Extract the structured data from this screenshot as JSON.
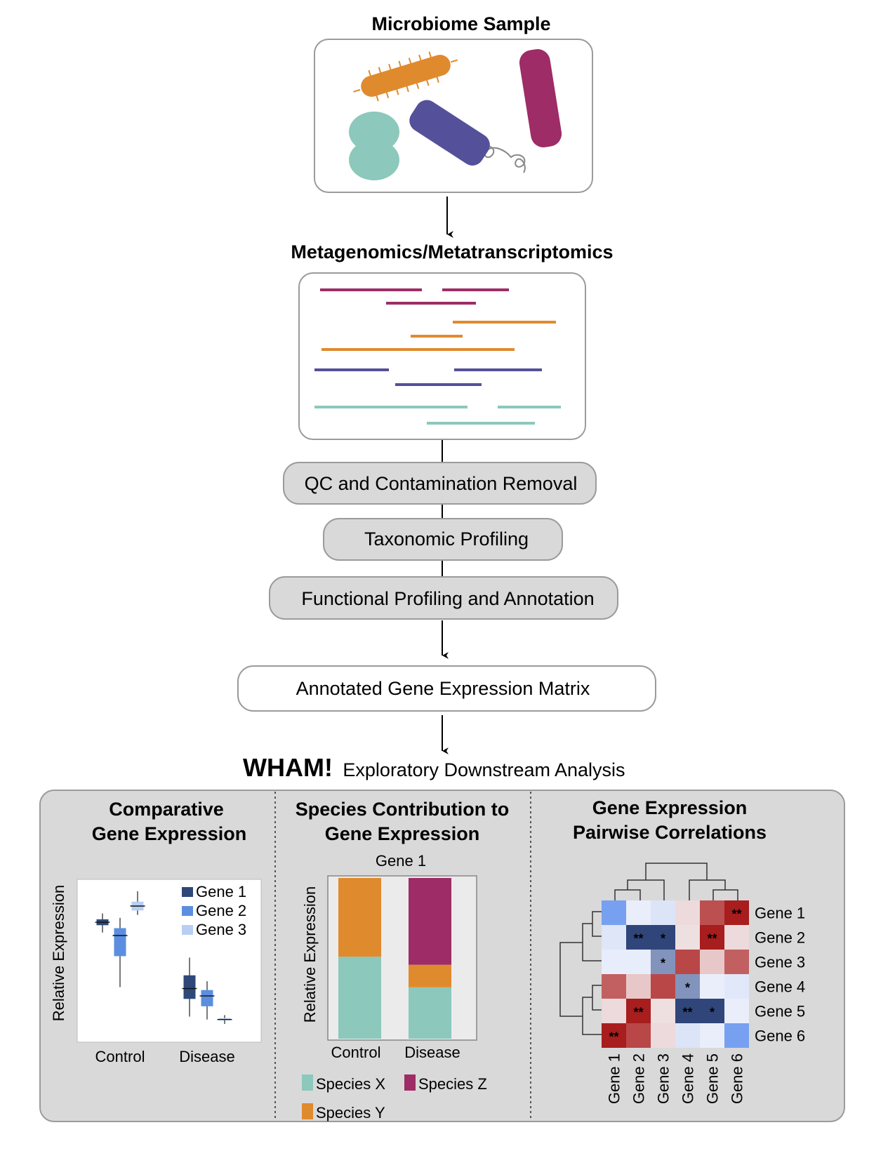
{
  "title": "Microbiome Sample",
  "sequencing_title": "Metagenomics/Metatranscriptomics",
  "steps": [
    "QC and Contamination Removal",
    "Taxonomic Profiling",
    "Functional Profiling and Annotation"
  ],
  "matrix_label": "Annotated Gene Expression Matrix",
  "wham": {
    "name": "WHAM!",
    "subtitle": "Exploratory Downstream Analysis"
  },
  "panels": {
    "comparative": {
      "title_line1": "Comparative",
      "title_line2": "Gene Expression",
      "ylabel": "Relative Expression",
      "groups": [
        "Control",
        "Disease"
      ],
      "legend": [
        "Gene 1",
        "Gene 2",
        "Gene 3"
      ],
      "colors": [
        "#2e4878",
        "#5b8ee0",
        "#b8cef2"
      ]
    },
    "species": {
      "title_line1": "Species Contribution to",
      "title_line2": "Gene Expression",
      "chart_title": "Gene 1",
      "ylabel": "Relative Expression",
      "groups": [
        "Control",
        "Disease"
      ],
      "legend": [
        "Species X",
        "Species Z",
        "Species Y"
      ],
      "colors": {
        "Species X": "#8cc8bb",
        "Species Y": "#e08a2e",
        "Species Z": "#9e2c66"
      },
      "stacks": [
        {
          "group": "Control",
          "Species X": 0.51,
          "Species Y": 0.49,
          "Species Z": 0.0
        },
        {
          "group": "Disease",
          "Species X": 0.32,
          "Species Y": 0.14,
          "Species Z": 0.54
        }
      ]
    },
    "correlation": {
      "title_line1": "Gene Expression",
      "title_line2": "Pairwise Correlations",
      "row_labels": [
        "Gene 1",
        "Gene 2",
        "Gene 3",
        "Gene 4",
        "Gene 5",
        "Gene 6"
      ],
      "col_labels": [
        "Gene 1",
        "Gene 2",
        "Gene 3",
        "Gene 4",
        "Gene 5",
        "Gene 6"
      ]
    }
  },
  "chart_data": [
    {
      "type": "box",
      "title": "",
      "xlabel": "",
      "ylabel": "Relative Expression",
      "categories": [
        "Control",
        "Disease"
      ],
      "series": [
        {
          "name": "Gene 1",
          "boxes": [
            {
              "min": 0.72,
              "q1": 0.77,
              "median": 0.79,
              "q3": 0.81,
              "max": 0.85
            },
            {
              "min": 0.15,
              "q1": 0.27,
              "median": 0.34,
              "q3": 0.43,
              "max": 0.55
            }
          ]
        },
        {
          "name": "Gene 2",
          "boxes": [
            {
              "min": 0.35,
              "q1": 0.56,
              "median": 0.7,
              "q3": 0.75,
              "max": 0.82
            },
            {
              "min": 0.13,
              "q1": 0.22,
              "median": 0.29,
              "q3": 0.33,
              "max": 0.39
            }
          ]
        },
        {
          "name": "Gene 3",
          "boxes": [
            {
              "min": 0.84,
              "q1": 0.87,
              "median": 0.9,
              "q3": 0.93,
              "max": 1.0
            },
            {
              "min": 0.1,
              "q1": 0.125,
              "median": 0.13,
              "q3": 0.14,
              "max": 0.16
            }
          ]
        }
      ]
    },
    {
      "type": "stacked-bar",
      "title": "Gene 1",
      "ylabel": "Relative Expression",
      "categories": [
        "Control",
        "Disease"
      ],
      "series": [
        {
          "name": "Species X",
          "values": [
            0.51,
            0.32
          ]
        },
        {
          "name": "Species Y",
          "values": [
            0.49,
            0.14
          ]
        },
        {
          "name": "Species Z",
          "values": [
            0.0,
            0.54
          ]
        }
      ],
      "ylim": [
        0,
        1
      ]
    },
    {
      "type": "heatmap",
      "rows": [
        "Gene 1",
        "Gene 2",
        "Gene 3",
        "Gene 4",
        "Gene 5",
        "Gene 6"
      ],
      "cols": [
        "Gene 1",
        "Gene 2",
        "Gene 3",
        "Gene 4",
        "Gene 5",
        "Gene 6"
      ],
      "values": [
        [
          -0.6,
          -0.05,
          -0.35,
          0.2,
          0.65,
          0.95
        ],
        [
          -0.3,
          -0.9,
          -0.9,
          0.15,
          0.95,
          0.2
        ],
        [
          -0.1,
          -0.1,
          -0.5,
          0.7,
          0.4,
          0.55
        ],
        [
          0.55,
          0.4,
          0.7,
          -0.5,
          -0.05,
          -0.25
        ],
        [
          0.2,
          0.95,
          0.15,
          -0.9,
          -0.9,
          -0.05
        ],
        [
          0.95,
          0.7,
          0.2,
          -0.35,
          -0.05,
          -0.6
        ]
      ],
      "annotations": [
        [
          "",
          "",
          "",
          "",
          "",
          "**"
        ],
        [
          "",
          "**",
          "*",
          "",
          "**",
          ""
        ],
        [
          "",
          "",
          "*",
          "",
          "",
          ""
        ],
        [
          "",
          "",
          "",
          "*",
          "",
          ""
        ],
        [
          "",
          "**",
          "",
          "**",
          "*",
          ""
        ],
        [
          "**",
          "",
          "",
          "",
          "",
          ""
        ]
      ]
    }
  ]
}
